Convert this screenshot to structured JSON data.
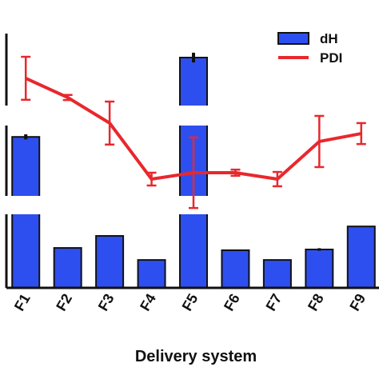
{
  "chart_data": {
    "type": "bar_line",
    "x_label": "Delivery system",
    "categories": [
      "F1",
      "F2",
      "F3",
      "F4",
      "F5",
      "F6",
      "F7",
      "F8",
      "F9"
    ],
    "series": [
      {
        "name": "dH",
        "type": "bar",
        "color": "#2e4ff0",
        "values": [
          59,
          15.6,
          20.3,
          10.9,
          90,
          14.7,
          10.9,
          15,
          24
        ],
        "errors": [
          1,
          0,
          0,
          0,
          1.9,
          0,
          0,
          0.5,
          0
        ]
      },
      {
        "name": "PDI",
        "type": "line",
        "axis": "y2",
        "color": "#e8282d",
        "values": [
          81.9,
          74.4,
          64.4,
          42.5,
          45,
          45,
          42.5,
          57.2,
          60.3
        ],
        "errors": [
          8.4,
          1,
          8.4,
          2.5,
          13.8,
          1.2,
          2.8,
          10,
          4.1
        ]
      }
    ],
    "ylim": [
      0,
      100
    ],
    "y2lim": [
      0,
      100
    ]
  }
}
